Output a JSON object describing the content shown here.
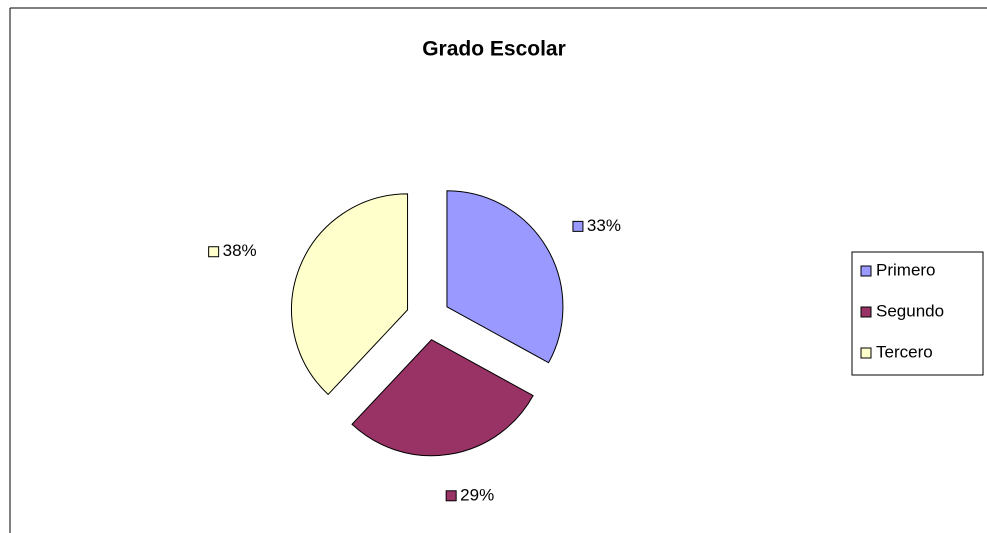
{
  "chart_data": {
    "type": "pie",
    "title": "Grado Escolar",
    "categories": [
      "Primero",
      "Segundo",
      "Tercero"
    ],
    "values": [
      33,
      29,
      38
    ],
    "value_labels": [
      "33%",
      "29%",
      "38%"
    ],
    "colors": [
      "#9999ff",
      "#993366",
      "#ffffcc"
    ],
    "exploded": true,
    "legend": "right"
  }
}
